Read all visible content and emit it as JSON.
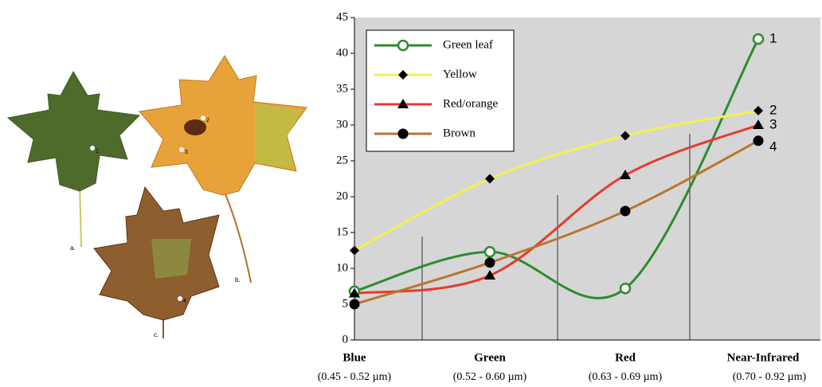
{
  "leaf_labels": [
    "a.",
    "b.",
    "c."
  ],
  "leaf_points": [
    "1",
    "2",
    "3",
    "4"
  ],
  "chart_data": {
    "type": "line",
    "categories": [
      "Blue",
      "Green",
      "Red",
      "Near-Infrared"
    ],
    "category_ranges": [
      "(0.45 - 0.52 µm)",
      "(0.52 - 0.60 µm)",
      "(0.63 - 0.69 µm)",
      "(0.70 - 0.92 µm)"
    ],
    "series": [
      {
        "name": "Green leaf",
        "color": "#2e8b2e",
        "marker": "open-circle",
        "end_label": "1",
        "values": [
          6.8,
          12.3,
          7.2,
          42
        ]
      },
      {
        "name": "Yellow",
        "color": "#f5f050",
        "marker": "diamond",
        "end_label": "2",
        "values": [
          12.5,
          22.5,
          28.5,
          32
        ]
      },
      {
        "name": "Red/orange",
        "color": "#e8392c",
        "marker": "triangle",
        "end_label": "3",
        "values": [
          6.5,
          9,
          23,
          30
        ]
      },
      {
        "name": "Brown",
        "color": "#b8772e",
        "marker": "circle",
        "end_label": "4",
        "values": [
          5,
          10.8,
          18,
          27.8
        ]
      }
    ],
    "ylim": [
      0,
      45
    ],
    "yticks": [
      0,
      5,
      10,
      15,
      20,
      25,
      30,
      35,
      40,
      45
    ],
    "grid": false
  }
}
